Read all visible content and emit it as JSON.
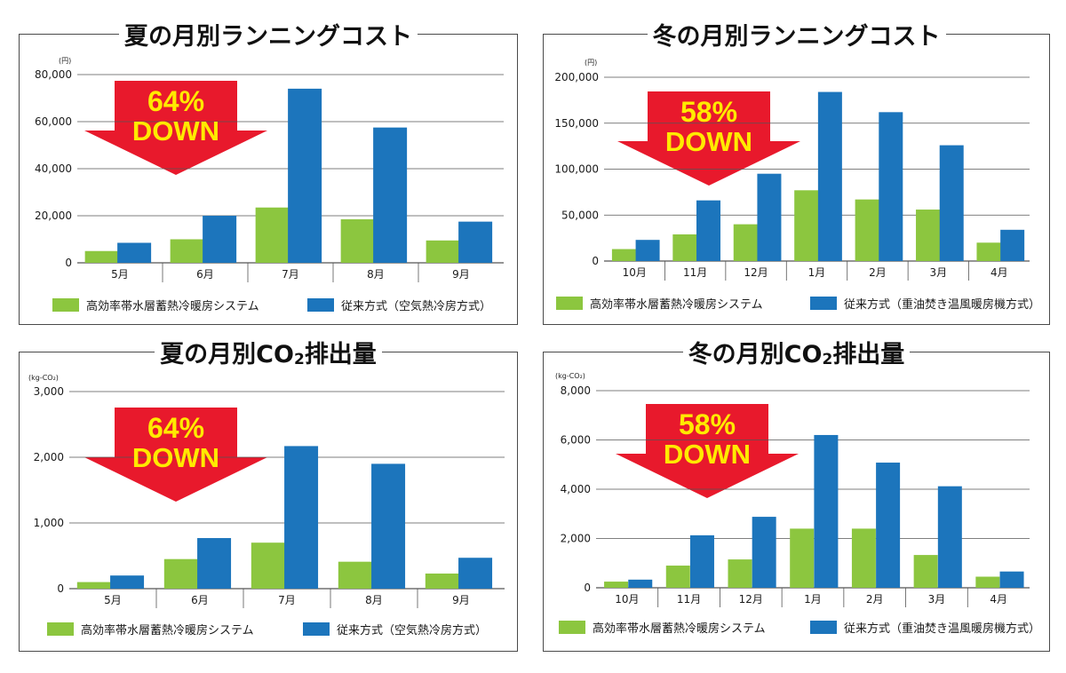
{
  "colors": {
    "green": "#8cc63f",
    "blue": "#1c75bc",
    "arrow": "#e8192c",
    "arrow_text": "#ffea00",
    "grid": "#555555"
  },
  "chart_data": [
    {
      "type": "bar",
      "title": "夏の月別ランニングコスト",
      "unit": "(円)",
      "categories": [
        "5月",
        "6月",
        "7月",
        "8月",
        "9月"
      ],
      "yticks": [
        "0",
        "20,000",
        "40,000",
        "60,000",
        "80,000"
      ],
      "ylim": [
        0,
        80000
      ],
      "series": [
        {
          "name": "高効率帯水層蓄熱冷暖房システム",
          "values": [
            5000,
            10000,
            23500,
            18500,
            9500
          ]
        },
        {
          "name": "従来方式（空気熱冷房方式）",
          "values": [
            8500,
            20000,
            74000,
            57500,
            17500
          ]
        }
      ],
      "badge": {
        "percent": "64%",
        "label": "DOWN"
      }
    },
    {
      "type": "bar",
      "title": "冬の月別ランニングコスト",
      "unit": "(円)",
      "categories": [
        "10月",
        "11月",
        "12月",
        "1月",
        "2月",
        "3月",
        "4月"
      ],
      "yticks": [
        "0",
        "50,000",
        "100,000",
        "150,000",
        "200,000"
      ],
      "ylim": [
        0,
        200000
      ],
      "series": [
        {
          "name": "高効率帯水層蓄熱冷暖房システム",
          "values": [
            13000,
            29000,
            40000,
            77000,
            67000,
            56000,
            20000
          ]
        },
        {
          "name": "従来方式（重油焚き温風暖房機方式）",
          "values": [
            23000,
            66000,
            95000,
            184000,
            162000,
            126000,
            34000
          ]
        }
      ],
      "badge": {
        "percent": "58%",
        "label": "DOWN"
      }
    },
    {
      "type": "bar",
      "title": "夏の月別CO",
      "title_sub": "2",
      "title_suffix": "排出量",
      "unit": "(kg-CO₂)",
      "categories": [
        "5月",
        "6月",
        "7月",
        "8月",
        "9月"
      ],
      "yticks": [
        "0",
        "1,000",
        "2,000",
        "3,000"
      ],
      "ylim": [
        0,
        3000
      ],
      "series": [
        {
          "name": "高効率帯水層蓄熱冷暖房システム",
          "values": [
            100,
            450,
            700,
            410,
            230
          ]
        },
        {
          "name": "従来方式（空気熱冷房方式）",
          "values": [
            200,
            770,
            2170,
            1900,
            470
          ]
        }
      ],
      "badge": {
        "percent": "64%",
        "label": "DOWN"
      }
    },
    {
      "type": "bar",
      "title": "冬の月別CO",
      "title_sub": "2",
      "title_suffix": "排出量",
      "unit": "(kg-CO₂)",
      "categories": [
        "10月",
        "11月",
        "12月",
        "1月",
        "2月",
        "3月",
        "4月"
      ],
      "yticks": [
        "0",
        "2,000",
        "4,000",
        "6,000",
        "8,000"
      ],
      "ylim": [
        0,
        8000
      ],
      "series": [
        {
          "name": "高効率帯水層蓄熱冷暖房システム",
          "values": [
            250,
            900,
            1150,
            2400,
            2400,
            1330,
            450
          ]
        },
        {
          "name": "従来方式（重油焚き温風暖房機方式）",
          "values": [
            330,
            2130,
            2880,
            6200,
            5080,
            4120,
            660
          ]
        }
      ],
      "badge": {
        "percent": "58%",
        "label": "DOWN"
      }
    }
  ]
}
